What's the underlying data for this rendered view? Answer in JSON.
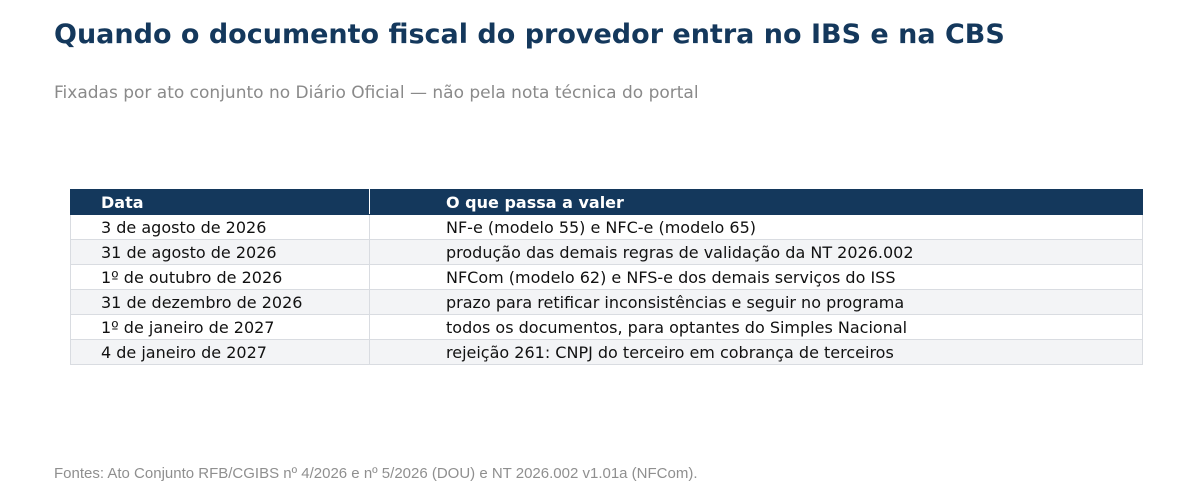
{
  "colors": {
    "title": "#14385c",
    "header_bg": "#14385c",
    "header_text": "#ffffff",
    "row_alt_bg": "#f3f4f6",
    "muted_text": "#8a8a8a"
  },
  "chart_data": {
    "type": "table",
    "title": "Quando o documento fiscal do provedor entra no IBS e na CBS",
    "subtitle": "Fixadas por ato conjunto no Diário Oficial — não pela nota técnica do portal",
    "columns": [
      "Data",
      "O que passa a valer"
    ],
    "rows": [
      [
        "3 de agosto de 2026",
        "NF-e (modelo 55) e NFC-e (modelo 65)"
      ],
      [
        "31 de agosto de 2026",
        "produção das demais regras de validação da NT 2026.002"
      ],
      [
        "1º de outubro de 2026",
        "NFCom (modelo 62) e NFS-e dos demais serviços do ISS"
      ],
      [
        "31 de dezembro de 2026",
        "prazo para retificar inconsistências e seguir no programa"
      ],
      [
        "1º de janeiro de 2027",
        "todos os documentos, para optantes do Simples Nacional"
      ],
      [
        "4 de janeiro de 2027",
        "rejeição 261: CNPJ do terceiro em cobrança de terceiros"
      ]
    ],
    "source": "Fontes: Ato Conjunto RFB/CGIBS nº 4/2026 e nº 5/2026 (DOU) e NT 2026.002 v1.01a (NFCom)."
  }
}
